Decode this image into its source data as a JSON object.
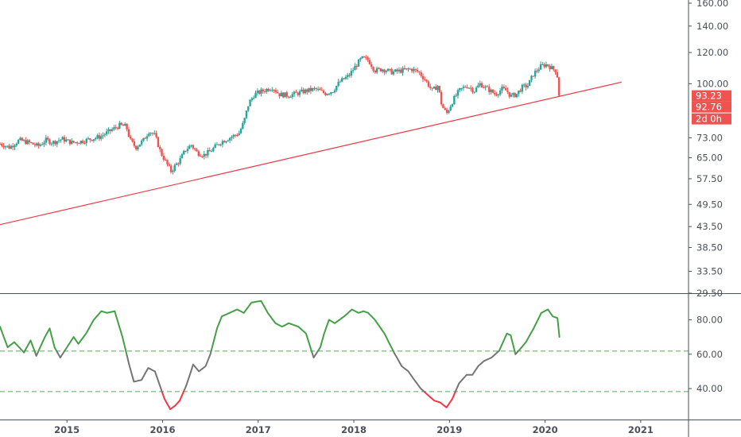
{
  "chart_data": [
    {
      "type": "candlestick",
      "title": "",
      "y_scale": "log",
      "ylim": [
        29.5,
        160
      ],
      "y_ticks": [
        "160.00",
        "140.00",
        "120.00",
        "100.00",
        "73.00",
        "65.00",
        "57.50",
        "49.50",
        "43.50",
        "38.50",
        "33.50",
        "29.50"
      ],
      "x_ticks": [
        "2015",
        "2016",
        "2017",
        "2018",
        "2019",
        "2020",
        "2021"
      ],
      "x_range": [
        2014.3,
        2021.5
      ],
      "up_color": "#26a69a",
      "down_color": "#ef5350",
      "close_path": [
        [
          2014.3,
          70.5
        ],
        [
          2014.4,
          69
        ],
        [
          2014.5,
          72
        ],
        [
          2014.6,
          71
        ],
        [
          2014.7,
          69.5
        ],
        [
          2014.78,
          72
        ],
        [
          2014.85,
          71
        ],
        [
          2014.95,
          72.5
        ],
        [
          2015.05,
          71
        ],
        [
          2015.15,
          71.5
        ],
        [
          2015.25,
          72.5
        ],
        [
          2015.35,
          73.5
        ],
        [
          2015.45,
          76
        ],
        [
          2015.55,
          78.5
        ],
        [
          2015.62,
          78
        ],
        [
          2015.66,
          72
        ],
        [
          2015.72,
          69
        ],
        [
          2015.8,
          72
        ],
        [
          2015.86,
          76
        ],
        [
          2015.92,
          74
        ],
        [
          2015.98,
          67
        ],
        [
          2016.04,
          63
        ],
        [
          2016.09,
          60
        ],
        [
          2016.13,
          62
        ],
        [
          2016.18,
          64
        ],
        [
          2016.24,
          68
        ],
        [
          2016.3,
          70
        ],
        [
          2016.36,
          67
        ],
        [
          2016.43,
          66
        ],
        [
          2016.5,
          67.5
        ],
        [
          2016.6,
          71
        ],
        [
          2016.7,
          73
        ],
        [
          2016.8,
          75
        ],
        [
          2016.85,
          80
        ],
        [
          2016.9,
          89
        ],
        [
          2016.96,
          94
        ],
        [
          2017.05,
          96
        ],
        [
          2017.15,
          98
        ],
        [
          2017.22,
          94
        ],
        [
          2017.32,
          93.5
        ],
        [
          2017.4,
          94.5
        ],
        [
          2017.5,
          96
        ],
        [
          2017.6,
          97
        ],
        [
          2017.7,
          94.5
        ],
        [
          2017.78,
          96
        ],
        [
          2017.85,
          101
        ],
        [
          2017.95,
          105
        ],
        [
          2018.02,
          111
        ],
        [
          2018.08,
          116
        ],
        [
          2018.15,
          115
        ],
        [
          2018.22,
          108
        ],
        [
          2018.3,
          109
        ],
        [
          2018.4,
          107
        ],
        [
          2018.5,
          108
        ],
        [
          2018.6,
          109
        ],
        [
          2018.68,
          107
        ],
        [
          2018.75,
          102
        ],
        [
          2018.82,
          96
        ],
        [
          2018.88,
          99
        ],
        [
          2018.92,
          88
        ],
        [
          2018.97,
          84
        ],
        [
          2019.04,
          91
        ],
        [
          2019.1,
          96
        ],
        [
          2019.18,
          99
        ],
        [
          2019.26,
          96
        ],
        [
          2019.32,
          100
        ],
        [
          2019.4,
          97
        ],
        [
          2019.48,
          94
        ],
        [
          2019.55,
          97
        ],
        [
          2019.6,
          96
        ],
        [
          2019.64,
          93
        ],
        [
          2019.7,
          94
        ],
        [
          2019.76,
          98
        ],
        [
          2019.82,
          99
        ],
        [
          2019.88,
          106
        ],
        [
          2019.96,
          111
        ],
        [
          2020.02,
          112
        ],
        [
          2020.08,
          109
        ],
        [
          2020.12,
          108
        ],
        [
          2020.15,
          93.23
        ]
      ],
      "overlays": [
        {
          "type": "trend-line",
          "color": "#f23645",
          "points": [
            [
              2014.3,
              44
            ],
            [
              2020.8,
              101
            ]
          ]
        }
      ],
      "price_labels": [
        {
          "label": "93.23",
          "value": 93.23,
          "color": "#ef5350"
        },
        {
          "label": "92.76",
          "value": 92.76,
          "color": "#ef5350"
        },
        {
          "label": "2d 0h",
          "value": 89.9,
          "color": "#ef5350"
        }
      ]
    },
    {
      "type": "line",
      "title": "",
      "ylim": [
        22,
        95
      ],
      "y_ticks": [
        "80.00",
        "60.00",
        "40.00"
      ],
      "levels": [
        61.8,
        38.2
      ],
      "level_color": "#4caf50",
      "upper_color": "#43a047",
      "lower_color": "#f23645",
      "mid_color": "#757575",
      "x": [
        2014.3,
        2014.38,
        2014.45,
        2014.55,
        2014.62,
        2014.68,
        2014.72,
        2014.77,
        2014.82,
        2014.87,
        2014.93,
        2015.0,
        2015.07,
        2015.12,
        2015.2,
        2015.28,
        2015.36,
        2015.42,
        2015.5,
        2015.58,
        2015.65,
        2015.7,
        2015.78,
        2015.85,
        2015.92,
        2015.97,
        2016.02,
        2016.08,
        2016.13,
        2016.18,
        2016.25,
        2016.32,
        2016.38,
        2016.45,
        2016.5,
        2016.57,
        2016.62,
        2016.7,
        2016.78,
        2016.85,
        2016.93,
        2017.03,
        2017.1,
        2017.18,
        2017.25,
        2017.32,
        2017.42,
        2017.5,
        2017.58,
        2017.65,
        2017.69,
        2017.74,
        2017.8,
        2017.9,
        2017.98,
        2018.05,
        2018.1,
        2018.15,
        2018.22,
        2018.32,
        2018.42,
        2018.5,
        2018.57,
        2018.62,
        2018.7,
        2018.78,
        2018.84,
        2018.9,
        2018.97,
        2019.03,
        2019.1,
        2019.18,
        2019.24,
        2019.3,
        2019.36,
        2019.44,
        2019.52,
        2019.6,
        2019.64,
        2019.69,
        2019.74,
        2019.8,
        2019.88,
        2019.96,
        2020.03,
        2020.08,
        2020.13,
        2020.15
      ],
      "values": [
        76,
        64,
        67,
        61,
        68,
        59,
        64,
        70,
        75,
        64,
        58,
        64,
        70,
        66,
        72,
        80,
        85,
        84,
        85,
        70,
        54,
        44,
        45,
        52,
        50,
        42,
        34,
        28,
        30,
        33,
        42,
        54,
        50,
        53,
        60,
        75,
        82,
        84,
        86,
        84,
        90,
        91,
        84,
        78,
        76,
        78,
        76,
        72,
        58,
        64,
        72,
        80,
        78,
        82,
        86,
        84,
        85,
        84,
        80,
        72,
        61,
        53,
        50,
        46,
        40,
        36,
        33,
        32,
        29,
        34,
        43,
        48,
        48,
        53,
        56,
        58,
        62,
        72,
        71,
        60,
        63,
        67,
        75,
        84,
        86,
        82,
        81,
        70
      ]
    }
  ]
}
